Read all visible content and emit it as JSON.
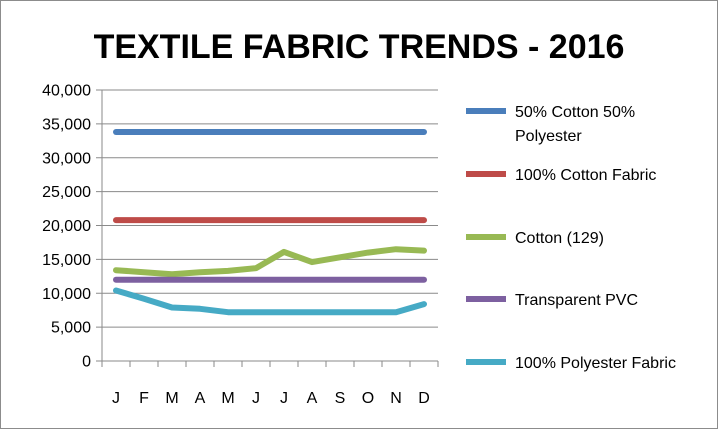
{
  "chart_data": {
    "type": "line",
    "title": "TEXTILE FABRIC TRENDS - 2016",
    "categories": [
      "J",
      "F",
      "M",
      "A",
      "M",
      "J",
      "J",
      "A",
      "S",
      "O",
      "N",
      "D"
    ],
    "ylim": [
      0,
      40000
    ],
    "yticks": [
      0,
      5000,
      10000,
      15000,
      20000,
      25000,
      30000,
      35000,
      40000
    ],
    "ytick_labels": [
      "0",
      "5,000",
      "10,000",
      "15,000",
      "20,000",
      "25,000",
      "30,000",
      "35,000",
      "40,000"
    ],
    "grid": true,
    "legend_position": "right",
    "series": [
      {
        "name": "50% Cotton 50% Polyester",
        "legend_lines": [
          "50% Cotton 50%",
          "Polyester"
        ],
        "color": "#4a7ebb",
        "values": [
          33800,
          33800,
          33800,
          33800,
          33800,
          33800,
          33800,
          33800,
          33800,
          33800,
          33800,
          33800
        ]
      },
      {
        "name": "100% Cotton Fabric",
        "legend_lines": [
          "100% Cotton Fabric"
        ],
        "color": "#be4b48",
        "values": [
          20800,
          20800,
          20800,
          20800,
          20800,
          20800,
          20800,
          20800,
          20800,
          20800,
          20800,
          20800
        ]
      },
      {
        "name": "Cotton (129)",
        "legend_lines": [
          "Cotton (129)"
        ],
        "color": "#98b954",
        "values": [
          13400,
          13100,
          12800,
          13100,
          13300,
          13700,
          16100,
          14600,
          15300,
          16000,
          16500,
          16300
        ]
      },
      {
        "name": "Transparent PVC",
        "legend_lines": [
          "Transparent PVC"
        ],
        "color": "#7d60a0",
        "values": [
          12000,
          12000,
          12000,
          12000,
          12000,
          12000,
          12000,
          12000,
          12000,
          12000,
          12000,
          12000
        ]
      },
      {
        "name": "100% Polyester Fabric",
        "legend_lines": [
          "100% Polyester Fabric"
        ],
        "color": "#46aac5",
        "values": [
          10400,
          9200,
          7900,
          7700,
          7200,
          7200,
          7200,
          7200,
          7200,
          7200,
          7200,
          8400
        ]
      }
    ]
  }
}
